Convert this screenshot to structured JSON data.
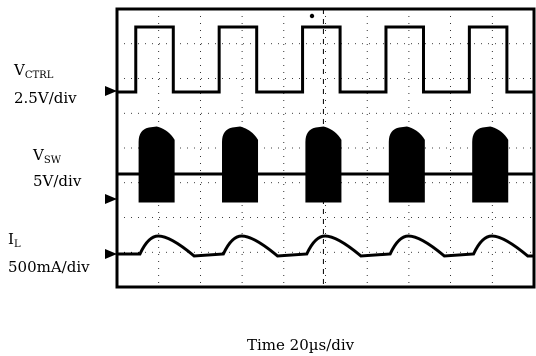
{
  "chart_data": {
    "type": "line",
    "title": "",
    "xlabel": "Time 20µs/div",
    "channels": [
      {
        "name": "CTRL",
        "symbol": "V",
        "subscript": "CTRL",
        "scale": "2.5V/div",
        "waveform": "square"
      },
      {
        "name": "SW",
        "symbol": "V",
        "subscript": "SW",
        "scale": "5V/div",
        "waveform": "burst"
      },
      {
        "name": "L",
        "symbol": "I",
        "subscript": "L",
        "scale": "500mA/div",
        "waveform": "ripple"
      }
    ],
    "period_divs": 2.0,
    "duty": 0.45,
    "pulse_starts_div": [
      0.45,
      2.45,
      4.45,
      6.45,
      8.45
    ],
    "x_divs": 10,
    "y_divs": 8,
    "grid": true
  }
}
